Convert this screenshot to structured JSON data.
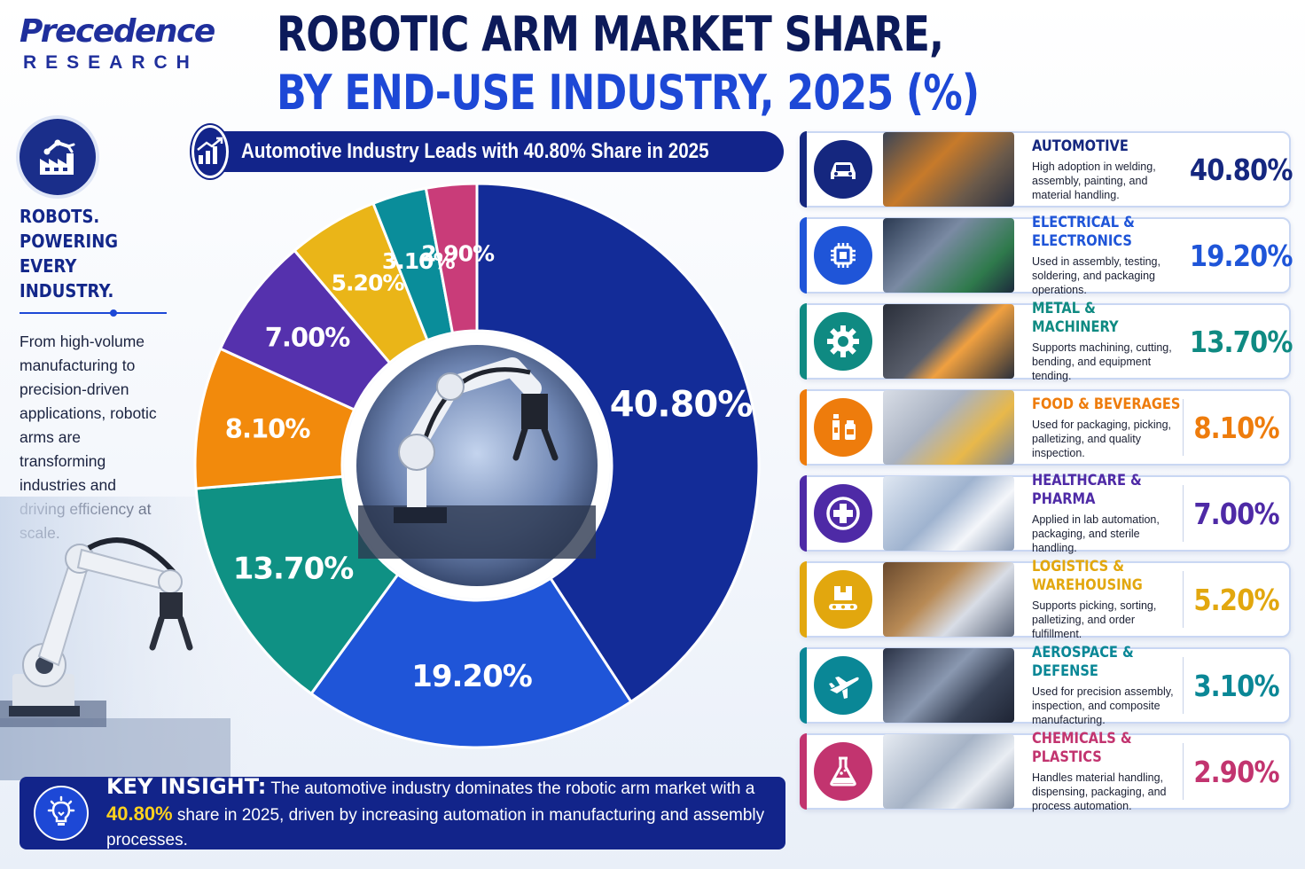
{
  "brand": {
    "name": "Precedence",
    "sub": "RESEARCH"
  },
  "title": {
    "line1": "ROBOTIC ARM MARKET SHARE,",
    "line2": "BY END-USE INDUSTRY, 2025 (%)"
  },
  "left": {
    "heading": "ROBOTS. POWERING EVERY INDUSTRY.",
    "body": "From high-volume manufacturing to precision-driven applications, robotic arms are transforming industries and driving efficiency at scale."
  },
  "banner": {
    "text": "Automotive Industry Leads with 40.80% Share in 2025"
  },
  "chart_data": {
    "type": "pie",
    "title": "ROBOTIC ARM MARKET SHARE, BY END-USE INDUSTRY, 2025 (%)",
    "categories": [
      "AUTOMOTIVE",
      "ELECTRICAL & ELECTRONICS",
      "METAL & MACHINERY",
      "FOOD & BEVERAGES",
      "HEALTHCARE & PHARMA",
      "LOGISTICS & WAREHOUSING",
      "AEROSPACE & DEFENSE",
      "CHEMICALS & PLASTICS"
    ],
    "values": [
      40.8,
      19.2,
      13.7,
      8.1,
      7.0,
      5.2,
      3.1,
      2.9
    ],
    "labels": [
      "40.80%",
      "19.20%",
      "13.70%",
      "8.10%",
      "7.00%",
      "5.20%",
      "3.10%",
      "2.90%"
    ],
    "colors": [
      "#132c98",
      "#1f55d8",
      "#0f9184",
      "#f28a0c",
      "#5531ad",
      "#eab518",
      "#0a8d9a",
      "#c93c79"
    ],
    "unit": "%"
  },
  "cards": [
    {
      "name": "AUTOMOTIVE",
      "desc": "High adoption in welding, assembly, painting, and material handling.",
      "value": "40.80%",
      "color": "#15277f",
      "icon": "car-icon"
    },
    {
      "name": "ELECTRICAL &\nELECTRONICS",
      "desc": "Used in assembly, testing, soldering, and packaging operations.",
      "value": "19.20%",
      "color": "#1f55d8",
      "icon": "chip-icon"
    },
    {
      "name": "METAL & MACHINERY",
      "desc": "Supports machining, cutting, bending, and equipment tending.",
      "value": "13.70%",
      "color": "#0f8a82",
      "icon": "gear-icon"
    },
    {
      "name": "FOOD & BEVERAGES",
      "desc": "Used for packaging, picking, palletizing, and quality inspection.",
      "value": "8.10%",
      "color": "#ee7c0c",
      "icon": "bottles-icon"
    },
    {
      "name": "HEALTHCARE & PHARMA",
      "desc": "Applied in lab automation, packaging, and sterile handling.",
      "value": "7.00%",
      "color": "#4e2aa6",
      "icon": "medical-cross-icon"
    },
    {
      "name": "LOGISTICS & WAREHOUSING",
      "desc": "Supports picking, sorting, palletizing, and order fulfillment.",
      "value": "5.20%",
      "color": "#e2a70e",
      "icon": "conveyor-box-icon"
    },
    {
      "name": "AEROSPACE & DEFENSE",
      "desc": "Used for precision assembly, inspection, and composite manufacturing.",
      "value": "3.10%",
      "color": "#0a8796",
      "icon": "airplane-icon"
    },
    {
      "name": "CHEMICALS & PLASTICS",
      "desc": "Handles material handling, dispensing, packaging, and process automation.",
      "value": "2.90%",
      "color": "#c2346f",
      "icon": "flask-icon"
    }
  ],
  "insight": {
    "label": "KEY INSIGHT:",
    "pre": " The automotive industry dominates the robotic arm market with a ",
    "highlight": "40.80%",
    "post": " share in 2025, driven by increasing automation in manufacturing and assembly processes."
  }
}
